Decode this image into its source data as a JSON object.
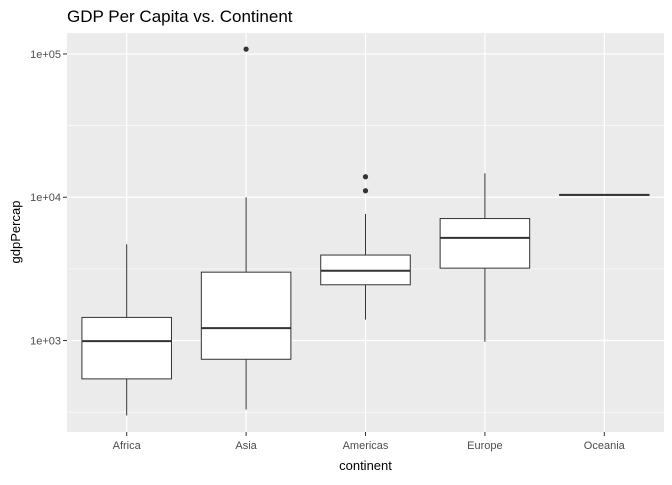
{
  "chart_data": {
    "type": "boxplot",
    "title": "GDP Per Capita vs. Continent",
    "xlabel": "continent",
    "ylabel": "gdpPercap",
    "y_scale": "log10",
    "ylim": [
      230,
      140000
    ],
    "y_ticks": [
      {
        "value": 1000,
        "label": "1e+03"
      },
      {
        "value": 10000,
        "label": "1e+04"
      },
      {
        "value": 100000,
        "label": "1e+05"
      }
    ],
    "categories": [
      "Africa",
      "Asia",
      "Americas",
      "Europe",
      "Oceania"
    ],
    "boxes": [
      {
        "category": "Africa",
        "lower_whisker": 300,
        "q1": 540,
        "median": 990,
        "q3": 1450,
        "upper_whisker": 4700,
        "outliers": []
      },
      {
        "category": "Asia",
        "lower_whisker": 330,
        "q1": 740,
        "median": 1220,
        "q3": 3000,
        "upper_whisker": 10000,
        "outliers": [
          108000
        ]
      },
      {
        "category": "Americas",
        "lower_whisker": 1400,
        "q1": 2450,
        "median": 3070,
        "q3": 3950,
        "upper_whisker": 7650,
        "outliers": [
          11100,
          13900
        ]
      },
      {
        "category": "Europe",
        "lower_whisker": 980,
        "q1": 3200,
        "median": 5200,
        "q3": 7100,
        "upper_whisker": 14700,
        "outliers": []
      },
      {
        "category": "Oceania",
        "lower_whisker": 10300,
        "q1": 10330,
        "median": 10380,
        "q3": 10430,
        "upper_whisker": 10500,
        "outliers": []
      }
    ],
    "grid": true,
    "legend": "none",
    "colors": {
      "panel_background": "#ebebeb",
      "grid_line": "#ffffff",
      "box_fill": "#ffffff",
      "box_line": "#333333",
      "outlier": "#333333",
      "tick_text": "#4d4d4d",
      "title_text": "#000000"
    }
  }
}
